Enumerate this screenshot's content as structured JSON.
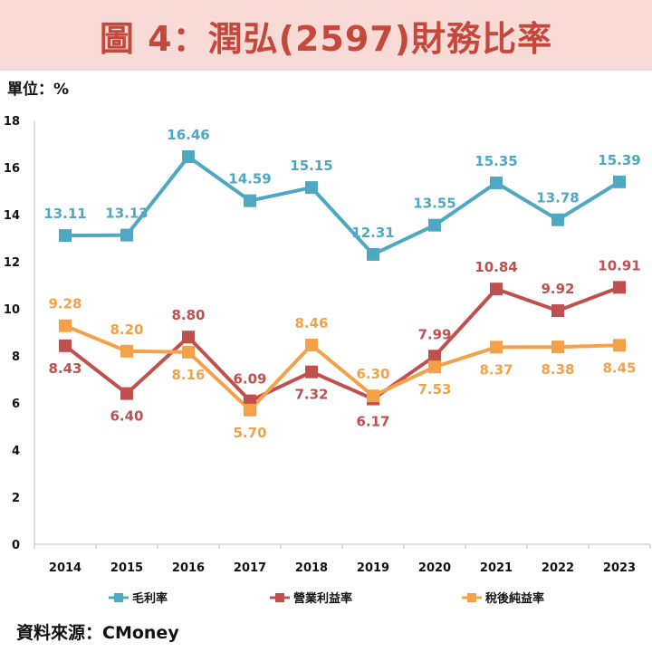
{
  "title": "圖 4：潤弘(2597)財務比率",
  "unit_label": "單位：%",
  "source": "資料來源：CMoney",
  "colors": {
    "title_bg": "#f8dbd6",
    "title_text": "#c4483c",
    "gross": "#4fa7c2",
    "operating": "#c0504d",
    "net": "#f4a14a"
  },
  "chart_data": {
    "type": "line",
    "title": "圖 4：潤弘(2597)財務比率",
    "xlabel": "",
    "ylabel": "單位：%",
    "ylim": [
      0,
      18
    ],
    "yticks": [
      0,
      2,
      4,
      6,
      8,
      10,
      12,
      14,
      16,
      18
    ],
    "categories": [
      "2014",
      "2015",
      "2016",
      "2017",
      "2018",
      "2019",
      "2020",
      "2021",
      "2022",
      "2023"
    ],
    "legend_position": "bottom",
    "series": [
      {
        "name": "毛利率",
        "color": "#4fa7c2",
        "values": [
          13.11,
          13.13,
          16.46,
          14.59,
          15.15,
          12.31,
          13.55,
          15.35,
          13.78,
          15.39
        ],
        "labels": [
          "13.11",
          "13.13",
          "16.46",
          "14.59",
          "15.15",
          "12.31",
          "13.55",
          "15.35",
          "13.78",
          "15.39"
        ]
      },
      {
        "name": "營業利益率",
        "color": "#c0504d",
        "values": [
          8.43,
          6.4,
          8.8,
          6.09,
          7.32,
          6.17,
          7.99,
          10.84,
          9.92,
          10.91
        ],
        "labels": [
          "8.43",
          "6.40",
          "8.80",
          "6.09",
          "7.32",
          "6.17",
          "7.99",
          "10.84",
          "9.92",
          "10.91"
        ]
      },
      {
        "name": "稅後純益率",
        "color": "#f4a14a",
        "values": [
          9.28,
          8.2,
          8.16,
          5.7,
          8.46,
          6.3,
          7.53,
          8.37,
          8.38,
          8.45
        ],
        "labels": [
          "9.28",
          "8.20",
          "8.16",
          "5.70",
          "8.46",
          "6.30",
          "7.53",
          "8.37",
          "8.38",
          "8.45"
        ]
      }
    ]
  }
}
